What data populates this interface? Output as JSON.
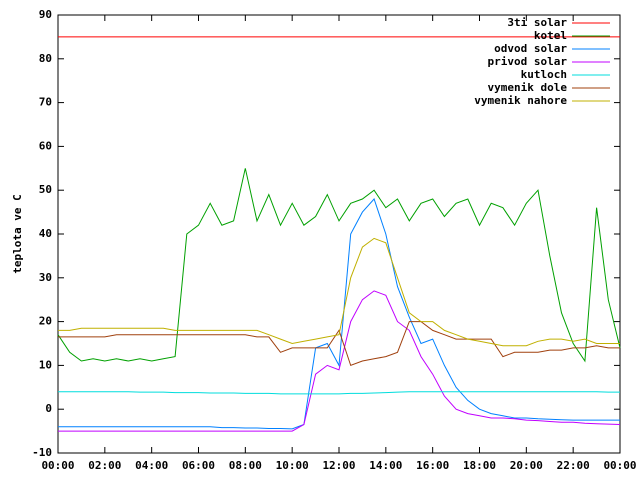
{
  "chart_data": {
    "type": "line",
    "ylabel": "teplota ve C",
    "x": [
      0,
      0.5,
      1,
      1.5,
      2,
      2.5,
      3,
      3.5,
      4,
      4.5,
      5,
      5.5,
      6,
      6.5,
      7,
      7.5,
      8,
      8.5,
      9,
      9.5,
      10,
      10.5,
      11,
      11.5,
      12,
      12.5,
      13,
      13.5,
      14,
      14.5,
      15,
      15.5,
      16,
      16.5,
      17,
      17.5,
      18,
      18.5,
      19,
      19.5,
      20,
      20.5,
      21,
      21.5,
      22,
      22.5,
      23,
      23.5,
      24
    ],
    "xlim": [
      0,
      24
    ],
    "xticks": [
      {
        "value": 0,
        "label": "00:00"
      },
      {
        "value": 2,
        "label": "02:00"
      },
      {
        "value": 4,
        "label": "04:00"
      },
      {
        "value": 6,
        "label": "06:00"
      },
      {
        "value": 8,
        "label": "08:00"
      },
      {
        "value": 10,
        "label": "10:00"
      },
      {
        "value": 12,
        "label": "12:00"
      },
      {
        "value": 14,
        "label": "14:00"
      },
      {
        "value": 16,
        "label": "16:00"
      },
      {
        "value": 18,
        "label": "18:00"
      },
      {
        "value": 20,
        "label": "20:00"
      },
      {
        "value": 22,
        "label": "22:00"
      },
      {
        "value": 24,
        "label": "00:00"
      }
    ],
    "ylim": [
      -10,
      90
    ],
    "yticks": [
      -10,
      0,
      10,
      20,
      30,
      40,
      50,
      60,
      70,
      80,
      90
    ],
    "grid": false,
    "legend": "top-right",
    "series": [
      {
        "name": "3ti solar",
        "color": "#ff0000",
        "values": [
          85,
          85,
          85,
          85,
          85,
          85,
          85,
          85,
          85,
          85,
          85,
          85,
          85,
          85,
          85,
          85,
          85,
          85,
          85,
          85,
          85,
          85,
          85,
          85,
          85,
          85,
          85,
          85,
          85,
          85,
          85,
          85,
          85,
          85,
          85,
          85,
          85,
          85,
          85,
          85,
          85,
          85,
          85,
          85,
          85,
          85,
          85,
          85,
          85
        ]
      },
      {
        "name": "kotel",
        "color": "#00a000",
        "values": [
          17,
          13,
          11,
          11.5,
          11,
          11.5,
          11,
          11.5,
          11,
          11.5,
          12,
          40,
          42,
          47,
          42,
          43,
          55,
          43,
          49,
          42,
          47,
          42,
          44,
          49,
          43,
          47,
          48,
          50,
          46,
          48,
          43,
          47,
          48,
          44,
          47,
          48,
          42,
          47,
          46,
          42,
          47,
          50,
          35,
          22,
          15,
          11,
          46,
          25,
          14
        ]
      },
      {
        "name": "odvod solar",
        "color": "#0080ff",
        "values": [
          -4,
          -4,
          -4,
          -4,
          -4,
          -4,
          -4,
          -4,
          -4,
          -4,
          -4,
          -4,
          -4,
          -4,
          -4.2,
          -4.2,
          -4.3,
          -4.3,
          -4.4,
          -4.4,
          -4.5,
          -3.5,
          14,
          15,
          10,
          40,
          45,
          48,
          40,
          28,
          21,
          15,
          16,
          10,
          5,
          2,
          0,
          -1,
          -1.5,
          -2,
          -2,
          -2.2,
          -2.3,
          -2.4,
          -2.5,
          -2.5,
          -2.5,
          -2.5,
          -2.5
        ]
      },
      {
        "name": "privod solar",
        "color": "#c000ff",
        "values": [
          -5,
          -5,
          -5,
          -5,
          -5,
          -5,
          -5,
          -5,
          -5,
          -5,
          -5,
          -5,
          -5,
          -5,
          -5,
          -5,
          -5,
          -5,
          -5,
          -5,
          -5,
          -3.5,
          8,
          10,
          9,
          20,
          25,
          27,
          26,
          20,
          18,
          12,
          8,
          3,
          0,
          -1,
          -1.5,
          -2,
          -2,
          -2.2,
          -2.5,
          -2.6,
          -2.8,
          -3,
          -3,
          -3.2,
          -3.3,
          -3.4,
          -3.5
        ]
      },
      {
        "name": "kutloch",
        "color": "#00dddd",
        "values": [
          4,
          4,
          4,
          4,
          4,
          4,
          4,
          3.9,
          3.9,
          3.9,
          3.8,
          3.8,
          3.8,
          3.7,
          3.7,
          3.7,
          3.6,
          3.6,
          3.6,
          3.5,
          3.5,
          3.5,
          3.5,
          3.5,
          3.5,
          3.6,
          3.6,
          3.7,
          3.8,
          3.9,
          4,
          4,
          4,
          4,
          4,
          4,
          4,
          4,
          4,
          4,
          4,
          4,
          4,
          4,
          4,
          4,
          4,
          3.9,
          3.9
        ]
      },
      {
        "name": "vymenik dole",
        "color": "#a0400e",
        "values": [
          16.5,
          16.5,
          16.5,
          16.5,
          16.5,
          17,
          17,
          17,
          17,
          17,
          17,
          17,
          17,
          17,
          17,
          17,
          17,
          16.5,
          16.5,
          13,
          14,
          14,
          14,
          14,
          18,
          10,
          11,
          11.5,
          12,
          13,
          20,
          20,
          18,
          17,
          16,
          16,
          16,
          16,
          12,
          13,
          13,
          13,
          13.5,
          13.5,
          14,
          14,
          14.5,
          14,
          14
        ]
      },
      {
        "name": "vymenik nahore",
        "color": "#c0b000",
        "values": [
          18,
          18,
          18.5,
          18.5,
          18.5,
          18.5,
          18.5,
          18.5,
          18.5,
          18.5,
          18,
          18,
          18,
          18,
          18,
          18,
          18,
          18,
          17,
          16,
          15,
          15.5,
          16,
          16.5,
          17,
          30,
          37,
          39,
          38,
          30,
          22,
          20,
          20,
          18,
          17,
          16,
          15.5,
          15,
          14.5,
          14.5,
          14.5,
          15.5,
          16,
          16,
          15.5,
          16,
          15,
          15,
          15
        ]
      }
    ]
  }
}
